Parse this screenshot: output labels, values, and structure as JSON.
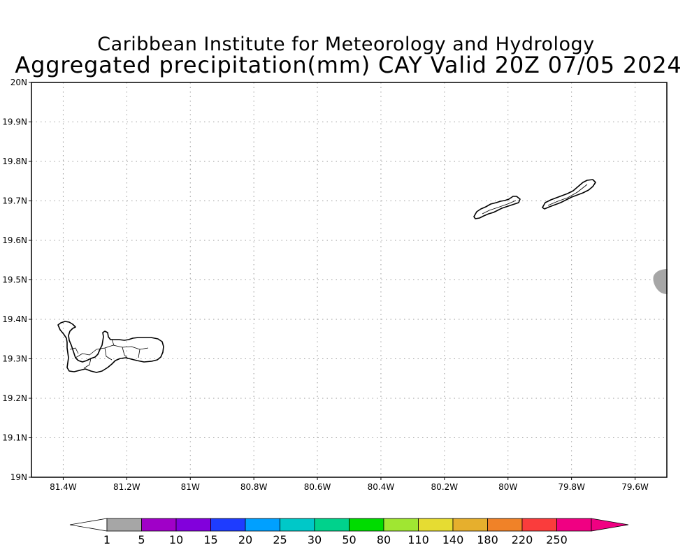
{
  "title": {
    "line1": "Caribbean Institute for Meteorology and Hydrology",
    "line2": "Aggregated precipitation(mm) CAY Valid 20Z 07/05 2024"
  },
  "map": {
    "lon_range": [
      -81.5,
      -79.5
    ],
    "lat_range": [
      19.0,
      20.0
    ],
    "lat_ticks": [
      {
        "value": 20.0,
        "label": "20N"
      },
      {
        "value": 19.9,
        "label": "19.9N"
      },
      {
        "value": 19.8,
        "label": "19.8N"
      },
      {
        "value": 19.7,
        "label": "19.7N"
      },
      {
        "value": 19.6,
        "label": "19.6N"
      },
      {
        "value": 19.5,
        "label": "19.5N"
      },
      {
        "value": 19.4,
        "label": "19.4N"
      },
      {
        "value": 19.3,
        "label": "19.3N"
      },
      {
        "value": 19.2,
        "label": "19.2N"
      },
      {
        "value": 19.1,
        "label": "19.1N"
      },
      {
        "value": 19.0,
        "label": "19N"
      }
    ],
    "lon_ticks": [
      {
        "value": -81.4,
        "label": "81.4W"
      },
      {
        "value": -81.2,
        "label": "81.2W"
      },
      {
        "value": -81.0,
        "label": "81W"
      },
      {
        "value": -80.8,
        "label": "80.8W"
      },
      {
        "value": -80.6,
        "label": "80.6W"
      },
      {
        "value": -80.4,
        "label": "80.4W"
      },
      {
        "value": -80.2,
        "label": "80.2W"
      },
      {
        "value": -80.0,
        "label": "80W"
      },
      {
        "value": -79.8,
        "label": "79.8W"
      },
      {
        "value": -79.6,
        "label": "79.6W"
      }
    ],
    "grid": "dotted",
    "islands": [
      "Grand Cayman",
      "Little Cayman",
      "Cayman Brac"
    ],
    "precip_features": [
      {
        "lon": -79.5,
        "lat": 19.5,
        "class": "1-5 mm",
        "color": "#a6a6a6"
      }
    ]
  },
  "colorbar": {
    "colors": [
      "#a6a6a6",
      "#a000c8",
      "#8200dc",
      "#1e3cff",
      "#00a0ff",
      "#00c8c8",
      "#00d28c",
      "#00dc00",
      "#a0e632",
      "#e6dc32",
      "#e6af2d",
      "#f08228",
      "#fa3c3c",
      "#f00082"
    ],
    "under_color": "#ffffff",
    "levels": [
      "1",
      "5",
      "10",
      "15",
      "20",
      "25",
      "30",
      "50",
      "80",
      "110",
      "140",
      "180",
      "220",
      "250"
    ]
  }
}
